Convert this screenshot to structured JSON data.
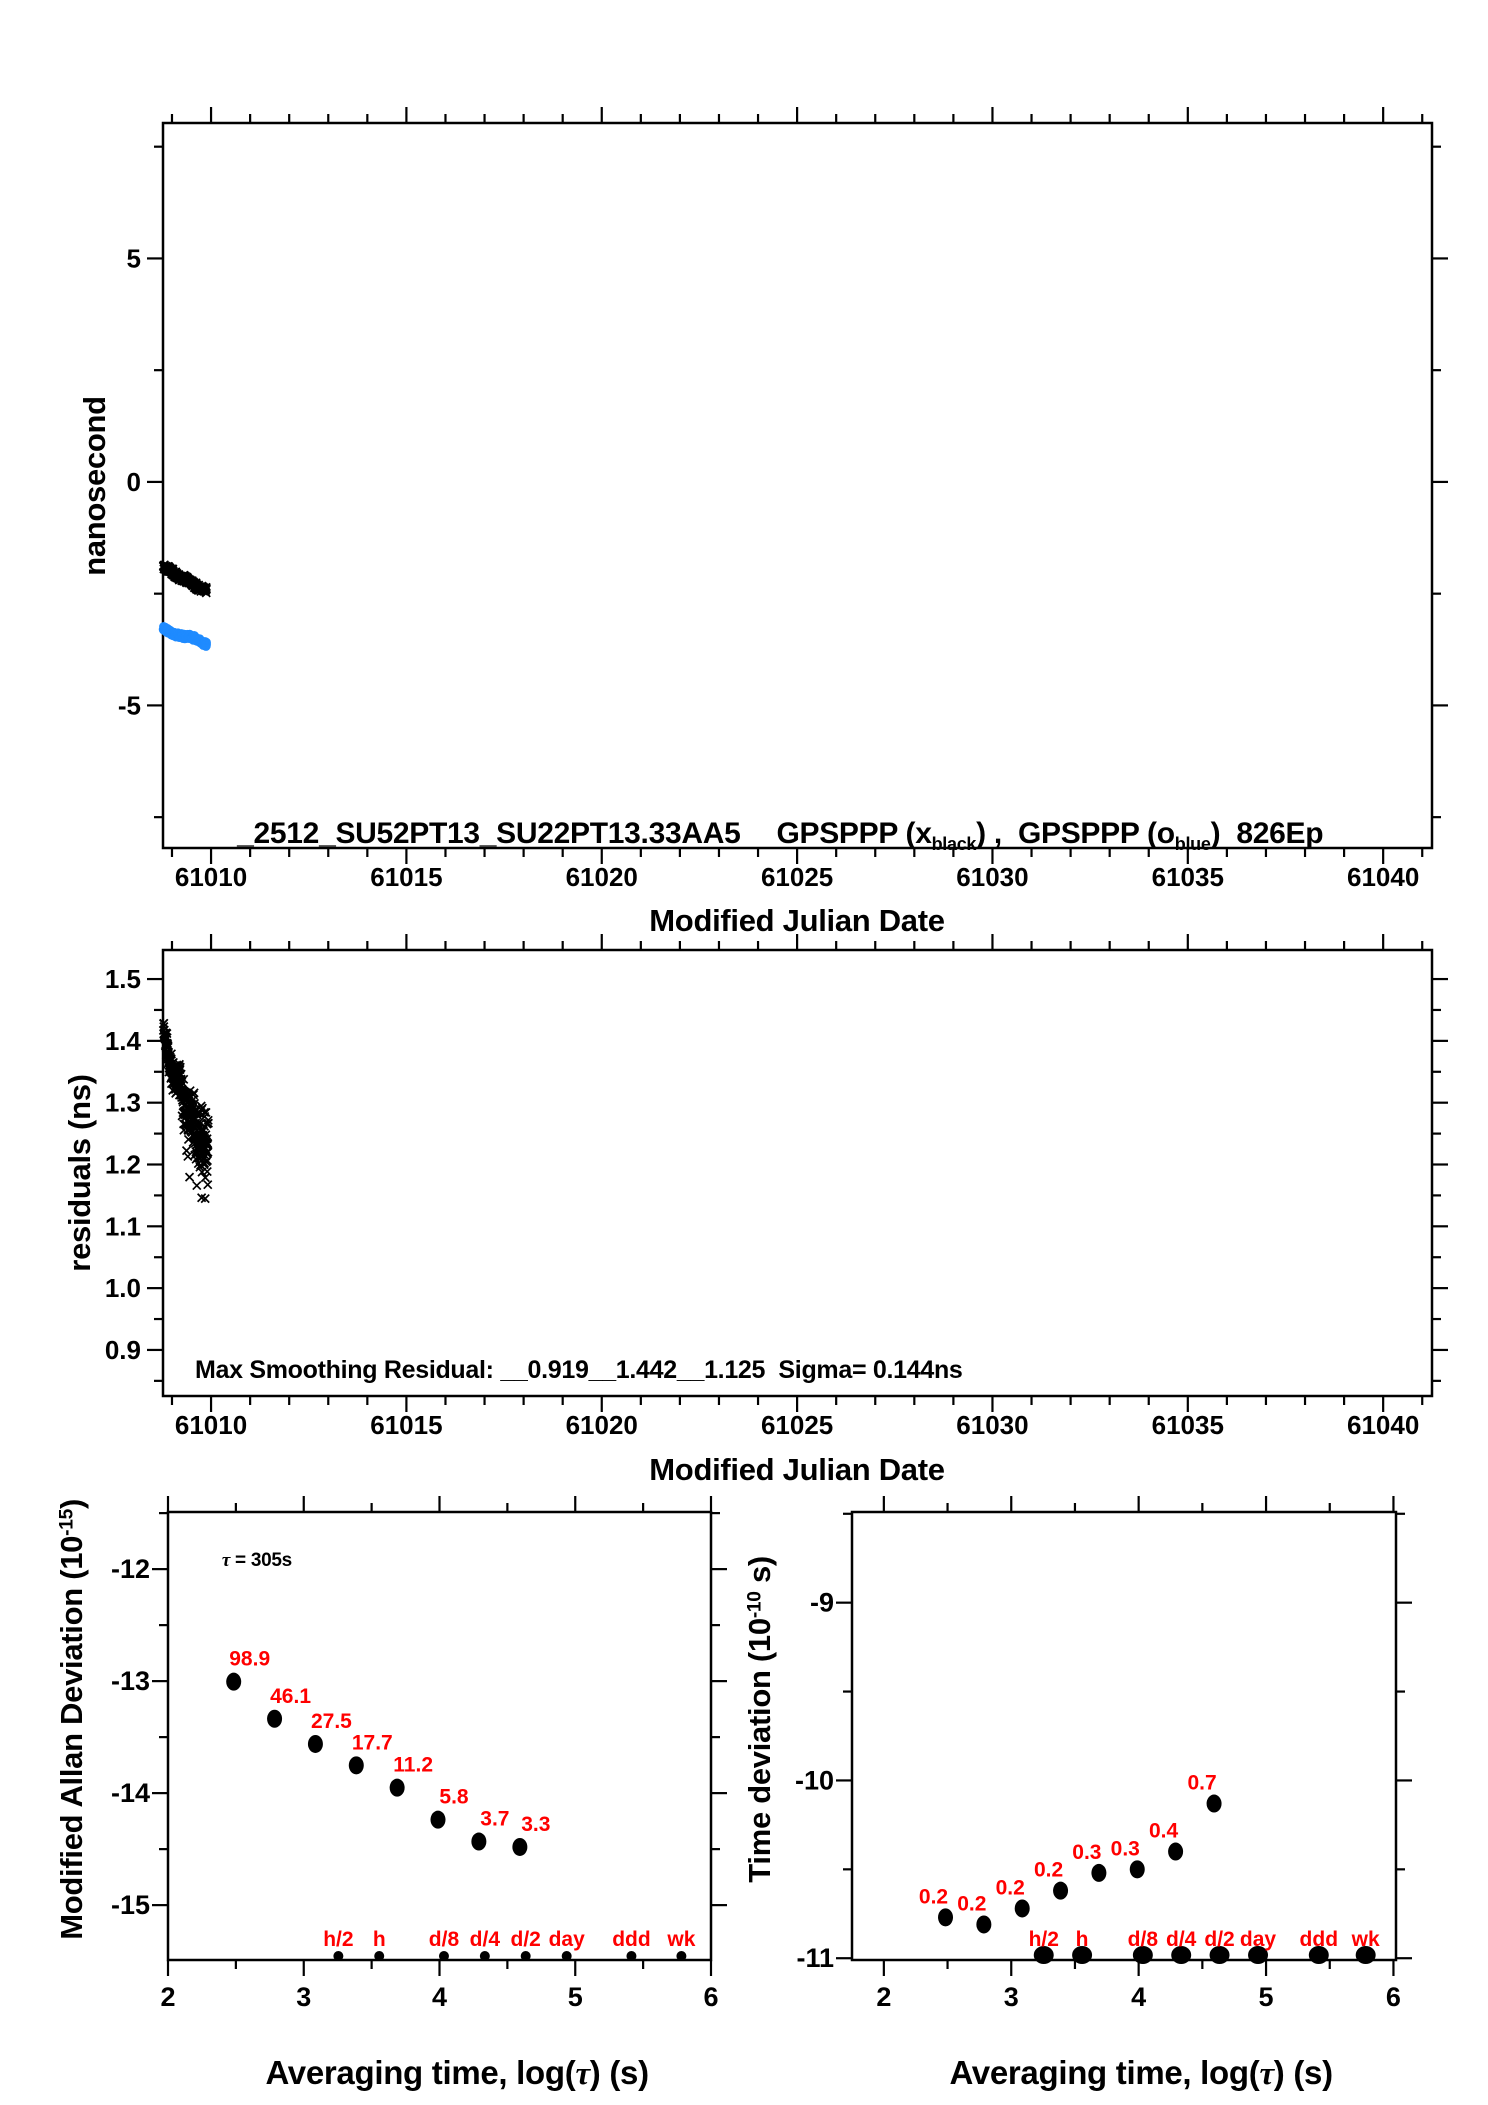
{
  "colors": {
    "black": "#000000",
    "blue": "#1f8bff",
    "red": "#ff0000",
    "background": "#ffffff"
  },
  "top_panel": {
    "ylabel": "nanosecond",
    "xlabel": "Modified Julian Date",
    "title_id": "_2512_SU52PT13_SU22PT13.33AA5",
    "title_s1": "GPSPPP (x",
    "title_sub1": "black",
    "title_s2": ") ,  GPSPPP (o",
    "title_sub2": "blue",
    "title_s3": ")  826Ep"
  },
  "middle_panel": {
    "ylabel": "residuals (ns)",
    "xlabel": "Modified Julian Date",
    "annotation": "Max Smoothing Residual: __0.919__1.442__1.125  Sigma= 0.144ns"
  },
  "bottom_left": {
    "ylabel_pre": "Modified Allan Deviation (10",
    "ylabel_sup": "-15",
    "ylabel_post": ")",
    "xlabel_pre": "Averaging time, log(",
    "xlabel_tau": "τ",
    "xlabel_post": ") (s)",
    "tau_annotation_pre": "τ",
    "tau_annotation_post": " = 305s"
  },
  "bottom_right": {
    "ylabel_pre": "Time deviation (10",
    "ylabel_sup": "-10",
    "ylabel_post": " s)",
    "xlabel_pre": "Averaging time, log(",
    "xlabel_tau": "τ",
    "xlabel_post": ") (s)"
  },
  "chart_data": [
    {
      "panel": "top",
      "type": "scatter",
      "title": "_2512_SU52PT13_SU22PT13.33AA5  GPSPPP (x black), GPSPPP (o blue) 826Ep",
      "xlabel": "Modified Julian Date",
      "ylabel": "nanosecond",
      "xlim": [
        61008.77,
        61041.25
      ],
      "ylim": [
        -8.19,
        8.03
      ],
      "x_major": [
        61010,
        61015,
        61020,
        61025,
        61030,
        61035,
        61040
      ],
      "x_major_labels": [
        "61010",
        "61015",
        "61020",
        "61025",
        "61030",
        "61035",
        "61040"
      ],
      "x_minor_step": 1,
      "y_major": [
        5,
        0,
        -5
      ],
      "y_major_labels": [
        "5",
        "0",
        "-5"
      ],
      "y_minor": [
        7.5,
        2.5,
        -2.5,
        -7.5
      ],
      "series": [
        {
          "name": "GPSPPP (x black)",
          "marker": "x",
          "color": "#000000",
          "n": 330,
          "x_start": 61008.78,
          "x_end": 61009.88,
          "poly": [
            -1.9,
            -0.55,
            0.0
          ],
          "wiggle": [
            0.018,
            14,
            0
          ],
          "noise": [
            0.05,
            0.05
          ],
          "seed": 11
        },
        {
          "name": "GPSPPP (o blue)",
          "marker": "o",
          "color": "#1f8bff",
          "n": 330,
          "x_start": 61008.78,
          "x_end": 61009.88,
          "poly": [
            -3.31,
            -0.29,
            0.0
          ],
          "wiggle": [
            0.03,
            9,
            2
          ],
          "noise": [
            0.04,
            0.04
          ],
          "seed": 23
        }
      ]
    },
    {
      "panel": "mid",
      "type": "scatter",
      "xlabel": "Modified Julian Date",
      "ylabel": "residuals (ns)",
      "xlim": [
        61008.77,
        61041.25
      ],
      "ylim": [
        0.8255,
        1.547
      ],
      "x_major": [
        61010,
        61015,
        61020,
        61025,
        61030,
        61035,
        61040
      ],
      "x_major_labels": [
        "61010",
        "61015",
        "61020",
        "61025",
        "61030",
        "61035",
        "61040"
      ],
      "x_minor_step": 1,
      "y_major": [
        1.5,
        1.4,
        1.3,
        1.2,
        1.1,
        1.0,
        0.9
      ],
      "y_major_labels": [
        "1.5",
        "1.4",
        "1.3",
        "1.2",
        "1.1",
        "1.0",
        "0.9"
      ],
      "y_minor": [
        1.45,
        1.35,
        1.25,
        1.15,
        1.05,
        0.95,
        0.85
      ],
      "stats": {
        "max_smoothing_residuals": [
          0.919,
          1.442,
          1.125
        ],
        "sigma_ns": 0.144
      },
      "series": [
        {
          "name": "smoothing residuals",
          "marker": "x",
          "color": "#000000",
          "n": 310,
          "x_start": 61008.78,
          "x_end": 61009.93,
          "poly": [
            1.408,
            -0.27,
            0.085
          ],
          "wiggle": [
            0.01,
            20,
            1
          ],
          "noise": [
            0.013,
            0.045
          ],
          "seed": 37,
          "outliers": {
            "prob": 0.035,
            "t_min": 0.45,
            "dy": -0.05
          }
        }
      ]
    },
    {
      "panel": "bl",
      "type": "scatter",
      "name": "Modified Allan Deviation",
      "xlabel": "Averaging time, log(τ) (s)",
      "ylabel": "Modified Allan Deviation (10^-15)",
      "tau_seconds": 305,
      "xlim": [
        2,
        6
      ],
      "ylim": [
        -15.49,
        -11.49
      ],
      "x_major": [
        2,
        3,
        4,
        5,
        6
      ],
      "x_major_labels": [
        "2",
        "3",
        "4",
        "5",
        "6"
      ],
      "x_minor": [
        2.5,
        3.5,
        4.5,
        5.5
      ],
      "y_major": [
        -12,
        -13,
        -14,
        -15
      ],
      "y_major_labels": [
        "-12",
        "-13",
        "-14",
        "-15"
      ],
      "y_minor": [
        -11.5,
        -12.5,
        -13.5,
        -14.5
      ],
      "points": {
        "x": [
          2.484,
          2.785,
          3.086,
          3.387,
          3.688,
          3.989,
          4.29,
          4.592
        ],
        "y": [
          -13.005,
          -13.336,
          -13.561,
          -13.752,
          -13.951,
          -14.237,
          -14.432,
          -14.481
        ],
        "labels": [
          "98.9",
          "46.1",
          "27.5",
          "17.7",
          "11.2",
          "5.8",
          "3.7",
          "3.3"
        ]
      },
      "calendar": {
        "x": [
          3.255,
          3.556,
          4.033,
          4.334,
          4.635,
          4.937,
          5.414,
          5.782
        ],
        "labels": [
          "h/2",
          "h",
          "d/8",
          "d/4",
          "d/2",
          "day",
          "ddd",
          "wk"
        ]
      }
    },
    {
      "panel": "br",
      "type": "scatter",
      "name": "Time deviation",
      "xlabel": "Averaging time, log(τ) (s)",
      "ylabel": "Time deviation (10^-10 s)",
      "xlim": [
        1.75,
        6.02
      ],
      "ylim": [
        -11.01,
        -8.49
      ],
      "x_major": [
        2,
        3,
        4,
        5,
        6
      ],
      "x_major_labels": [
        "2",
        "3",
        "4",
        "5",
        "6"
      ],
      "x_minor": [
        2.5,
        3.5,
        4.5,
        5.5
      ],
      "y_major": [
        -9,
        -10,
        -11
      ],
      "y_major_labels": [
        "-9",
        "-10",
        "-11"
      ],
      "y_minor": [
        -8.5,
        -9.5,
        -10.5
      ],
      "points": {
        "x": [
          2.484,
          2.785,
          3.086,
          3.387,
          3.688,
          3.989,
          4.29,
          4.592
        ],
        "y": [
          -10.77,
          -10.81,
          -10.72,
          -10.62,
          -10.52,
          -10.5,
          -10.4,
          -10.13
        ],
        "labels": [
          "0.2",
          "0.2",
          "0.2",
          "0.2",
          "0.3",
          "0.3",
          "0.4",
          "0.7"
        ]
      },
      "calendar": {
        "x": [
          3.255,
          3.556,
          4.033,
          4.334,
          4.635,
          4.937,
          5.414,
          5.782
        ],
        "labels": [
          "h/2",
          "h",
          "d/8",
          "d/4",
          "d/2",
          "day",
          "ddd",
          "wk"
        ]
      }
    }
  ]
}
